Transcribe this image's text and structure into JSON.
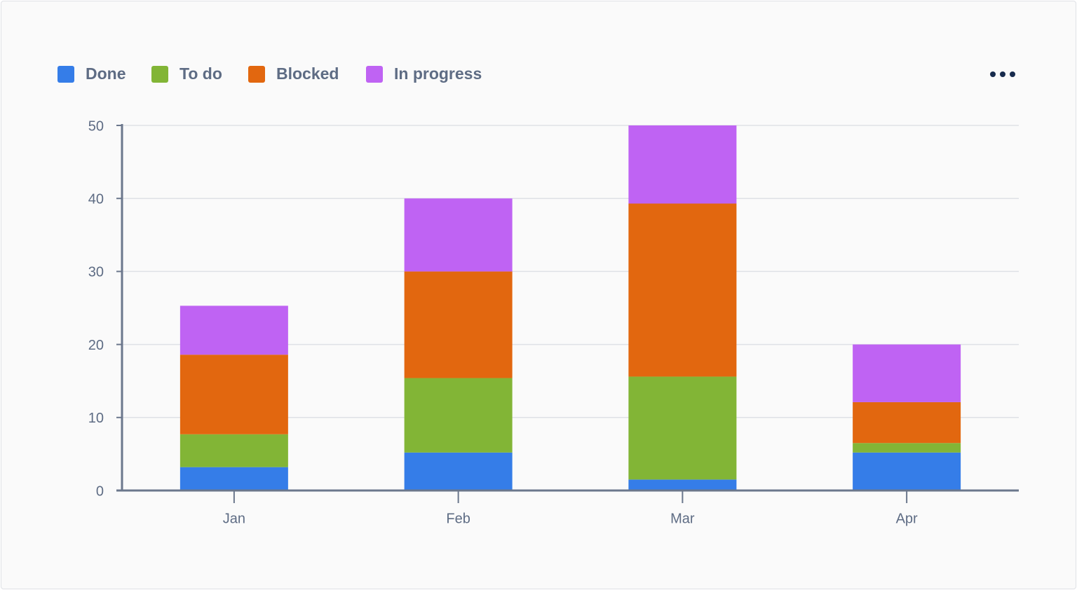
{
  "chart_data": {
    "type": "stacked-bar",
    "categories": [
      "Jan",
      "Feb",
      "Mar",
      "Apr"
    ],
    "series": [
      {
        "name": "Done",
        "color": "#357de8",
        "values": [
          3.2,
          5.2,
          1.5,
          5.2
        ]
      },
      {
        "name": "To do",
        "color": "#82b536",
        "values": [
          4.5,
          10.2,
          14.1,
          1.3
        ]
      },
      {
        "name": "Blocked",
        "color": "#e2670f",
        "values": [
          10.9,
          14.6,
          23.7,
          5.6
        ]
      },
      {
        "name": "In progress",
        "color": "#bf63f3",
        "values": [
          6.7,
          10,
          10.7,
          7.9
        ]
      }
    ],
    "ylim": [
      0,
      50
    ],
    "yticks": [
      0,
      10,
      20,
      30,
      40,
      50
    ],
    "grid": true
  }
}
